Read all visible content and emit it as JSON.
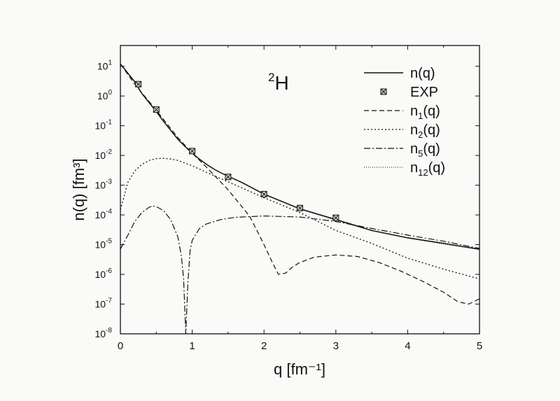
{
  "chart_data": {
    "type": "line",
    "title": "",
    "xlabel": "q [fm⁻¹]",
    "ylabel": "n(q) [fm³]",
    "annotation": "²H",
    "xlim": [
      0,
      5
    ],
    "ylim": [
      1e-08,
      50
    ],
    "yscale": "log",
    "grid": false,
    "legend_position": "top-right",
    "x_ticks": [
      0,
      1,
      2,
      3,
      4,
      5
    ],
    "y_ticks": [
      {
        "value": 10.0,
        "base": "10",
        "exp": "1"
      },
      {
        "value": 1.0,
        "base": "10",
        "exp": "0"
      },
      {
        "value": 0.1,
        "base": "10",
        "exp": "-1"
      },
      {
        "value": 0.01,
        "base": "10",
        "exp": "-2"
      },
      {
        "value": 0.001,
        "base": "10",
        "exp": "-3"
      },
      {
        "value": 0.0001,
        "base": "10",
        "exp": "-4"
      },
      {
        "value": 1e-05,
        "base": "10",
        "exp": "-5"
      },
      {
        "value": 1e-06,
        "base": "10",
        "exp": "-6"
      },
      {
        "value": 1e-07,
        "base": "10",
        "exp": "-7"
      },
      {
        "value": 1e-08,
        "base": "10",
        "exp": "-8"
      }
    ],
    "series": [
      {
        "name": "n(q)",
        "style": "solid",
        "marker": "none",
        "x": [
          0,
          0.1,
          0.2,
          0.3,
          0.4,
          0.5,
          0.6,
          0.7,
          0.8,
          0.9,
          1.0,
          1.1,
          1.2,
          1.3,
          1.4,
          1.5,
          1.7,
          2.0,
          2.5,
          3.0,
          3.5,
          4.0,
          4.5,
          5.0
        ],
        "y": [
          12,
          6,
          3,
          1.2,
          0.6,
          0.3,
          0.14,
          0.07,
          0.035,
          0.02,
          0.012,
          0.0075,
          0.005,
          0.0035,
          0.0026,
          0.002,
          0.0012,
          0.0005,
          0.00016,
          7e-05,
          3e-05,
          1.7e-05,
          1.1e-05,
          7e-06
        ]
      },
      {
        "name": "EXP",
        "style": "none",
        "marker": "boxed-x",
        "x": [
          0.25,
          0.5,
          1.0,
          1.5,
          2.0,
          2.5,
          3.0
        ],
        "y": [
          2.5,
          0.35,
          0.014,
          0.0019,
          0.0005,
          0.00017,
          8e-05
        ]
      },
      {
        "name": "n_1(q)",
        "style": "dashed",
        "marker": "none",
        "x": [
          0,
          0.2,
          0.5,
          0.8,
          1.0,
          1.2,
          1.5,
          1.8,
          2.0,
          2.1,
          2.2,
          2.3,
          2.4,
          2.5,
          2.7,
          3.0,
          3.3,
          3.6,
          3.9,
          4.2,
          4.5,
          4.7,
          4.85,
          5.0
        ],
        "y": [
          12,
          2.5,
          0.33,
          0.04,
          0.012,
          0.004,
          0.0007,
          9e-05,
          1e-05,
          3e-06,
          1e-06,
          1.1e-06,
          1.8e-06,
          2.5e-06,
          3.8e-06,
          4.5e-06,
          4e-06,
          2.5e-06,
          1.3e-06,
          6e-07,
          2.5e-07,
          1.2e-07,
          1e-07,
          1.5e-07
        ]
      },
      {
        "name": "n_2(q)",
        "style": "dotted",
        "marker": "none",
        "x": [
          0,
          0.05,
          0.1,
          0.2,
          0.3,
          0.4,
          0.5,
          0.6,
          0.7,
          0.8,
          1.0,
          1.2,
          1.5,
          2.0,
          2.5,
          3.0,
          3.5,
          4.0,
          4.5,
          5.0
        ],
        "y": [
          0.00015,
          0.0004,
          0.0012,
          0.003,
          0.005,
          0.0068,
          0.0078,
          0.008,
          0.0076,
          0.0068,
          0.0045,
          0.0027,
          0.0013,
          0.00038,
          0.00012,
          3e-05,
          1.1e-05,
          3.5e-06,
          1.5e-06,
          7e-07
        ]
      },
      {
        "name": "n_5(q)",
        "style": "dashdot",
        "marker": "none",
        "x": [
          0,
          0.05,
          0.1,
          0.2,
          0.3,
          0.4,
          0.45,
          0.5,
          0.6,
          0.7,
          0.8,
          0.85,
          0.88,
          0.91,
          0.94,
          0.97,
          1.0,
          1.1,
          1.2,
          1.4,
          1.6,
          2.0,
          2.5,
          3.0,
          3.5,
          4.0,
          4.5,
          5.0
        ],
        "y": [
          7e-06,
          1.2e-05,
          2e-05,
          6e-05,
          0.00012,
          0.00018,
          0.0002,
          0.00019,
          0.00014,
          7e-05,
          1.8e-05,
          4e-06,
          7e-07,
          1e-08,
          5e-07,
          6e-06,
          1.4e-05,
          3.5e-05,
          5e-05,
          7e-05,
          8.3e-05,
          9.2e-05,
          8.5e-05,
          6e-05,
          3.5e-05,
          2.1e-05,
          1.3e-05,
          7.5e-06
        ]
      },
      {
        "name": "n_12(q)",
        "style": "fine-dotted",
        "marker": "none",
        "x": [
          0,
          0.1,
          0.2,
          0.3,
          0.4,
          0.5,
          0.6,
          0.7,
          0.8,
          0.9,
          1.0,
          1.1,
          1.2,
          1.3,
          1.4,
          1.5,
          1.7,
          2.0,
          2.5,
          3.0,
          3.5,
          4.0,
          4.5,
          5.0
        ],
        "y": [
          12,
          6,
          3,
          1.2,
          0.6,
          0.3,
          0.14,
          0.07,
          0.035,
          0.02,
          0.012,
          0.0075,
          0.005,
          0.0035,
          0.0026,
          0.002,
          0.0012,
          0.00049,
          0.000155,
          6.6e-05,
          2.9e-05,
          1.65e-05,
          1.05e-05,
          6.8e-06
        ]
      }
    ],
    "legend": [
      {
        "base": "n",
        "sub": "",
        "suffix": "(q)",
        "style": "solid"
      },
      {
        "base": "EXP",
        "sub": "",
        "suffix": "",
        "style": "marker"
      },
      {
        "base": "n",
        "sub": "1",
        "suffix": "(q)",
        "style": "dashed"
      },
      {
        "base": "n",
        "sub": "2",
        "suffix": "(q)",
        "style": "dotted"
      },
      {
        "base": "n",
        "sub": "5",
        "suffix": "(q)",
        "style": "dashdot"
      },
      {
        "base": "n",
        "sub": "12",
        "suffix": "(q)",
        "style": "fine-dotted"
      }
    ]
  }
}
